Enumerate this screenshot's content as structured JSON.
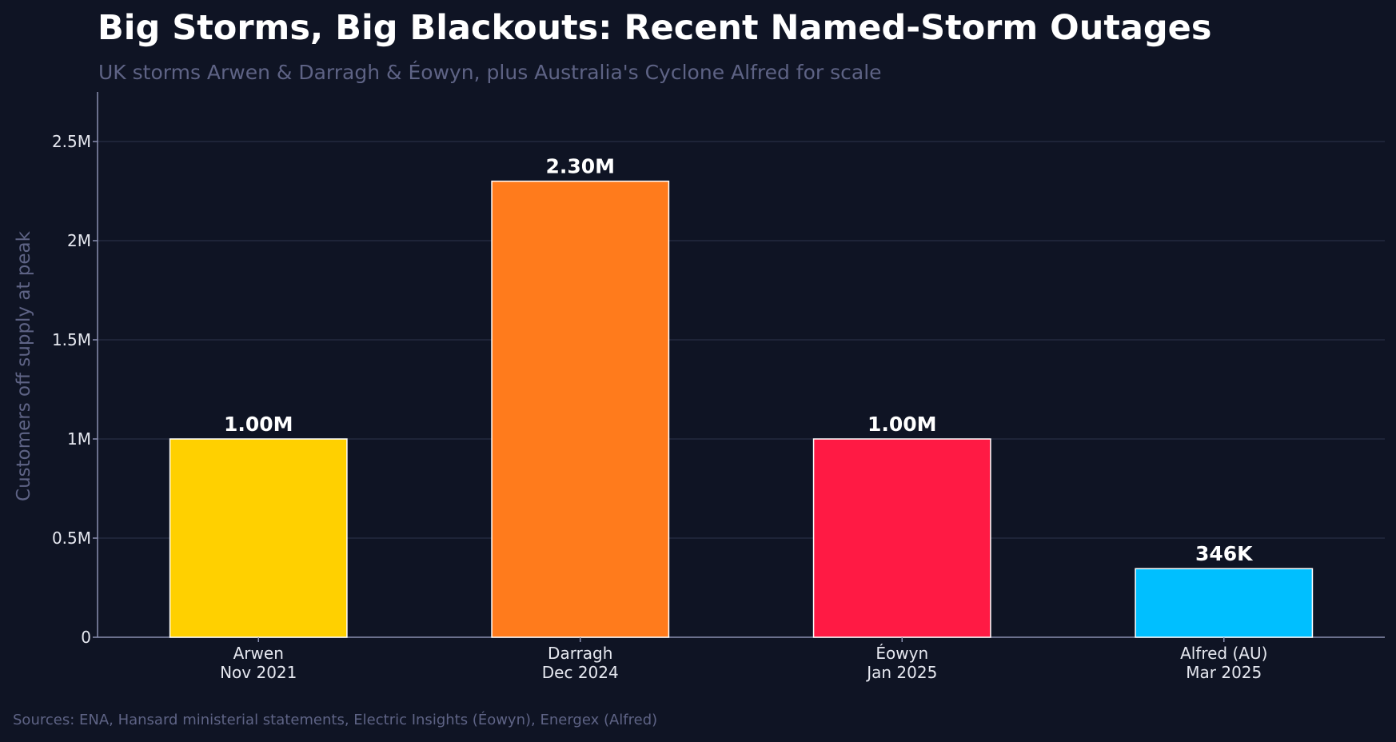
{
  "chart_data": {
    "type": "bar",
    "title": "Big Storms, Big Blackouts: Recent Named-Storm Outages",
    "subtitle": "UK storms Arwen & Darragh & Éowyn, plus Australia's Cyclone Alfred for scale",
    "ylabel": "Customers off supply at peak",
    "xlabel": "",
    "ylim": [
      0,
      2750000
    ],
    "yticks": [
      {
        "value": 0,
        "label": "0"
      },
      {
        "value": 500000,
        "label": "0.5M"
      },
      {
        "value": 1000000,
        "label": "1M"
      },
      {
        "value": 1500000,
        "label": "1.5M"
      },
      {
        "value": 2000000,
        "label": "2M"
      },
      {
        "value": 2500000,
        "label": "2.5M"
      }
    ],
    "grid": true,
    "legend": "none",
    "categories": [
      {
        "line1": "Arwen",
        "line2": "Nov 2021"
      },
      {
        "line1": "Darragh",
        "line2": "Dec 2024"
      },
      {
        "line1": "Éowyn",
        "line2": "Jan 2025"
      },
      {
        "line1": "Alfred (AU)",
        "line2": "Mar 2025"
      }
    ],
    "values": [
      1000000,
      2300000,
      1000000,
      346000
    ],
    "value_labels": [
      "1.00M",
      "2.30M",
      "1.00M",
      "346K"
    ],
    "colors": [
      "#ffd000",
      "#ff7b1c",
      "#ff1a44",
      "#00bfff"
    ]
  },
  "source": "Sources: ENA, Hansard ministerial statements, Electric Insights (Éowyn), Energex (Alfred)"
}
